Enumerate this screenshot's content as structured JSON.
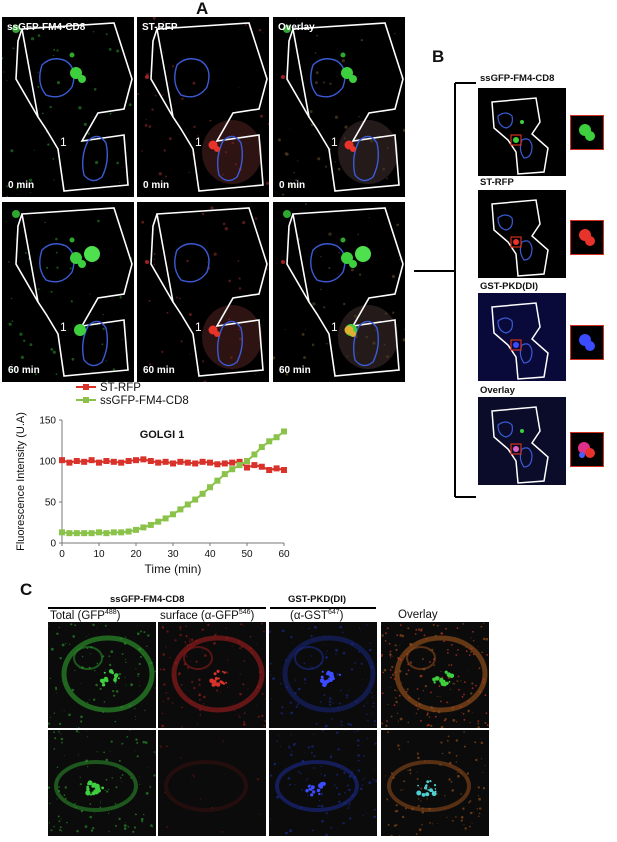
{
  "panel_a": {
    "letter": "A",
    "columns": [
      "ssGFP-FM4-CD8",
      "ST-RFP",
      "Overlay"
    ],
    "times": [
      "0 min",
      "60 min"
    ],
    "cell_marker": "1"
  },
  "panel_b": {
    "letter": "B",
    "rows": [
      "ssGFP-FM4-CD8",
      "ST-RFP",
      "GST-PKD(DI)",
      "Overlay"
    ]
  },
  "panel_c": {
    "letter": "C",
    "group1": "ssGFP-FM4-CD8",
    "group2": "GST-PKD(DI)",
    "col1_text": "Total (GFP",
    "col1_sup": "488",
    "col1_end": ")",
    "col2_text": "surface (α-GFP",
    "col2_sup": "546",
    "col2_end": ")",
    "col3_text": "(α-GST",
    "col3_sup": "647",
    "col3_end": ")",
    "col4": "Overlay"
  },
  "colors": {
    "st_rfp": "#d8322a",
    "ssgfp": "#8bc34a",
    "outline_white": "#ffffff",
    "outline_blue": "#3b5bd6",
    "zoom_box": "#d2301e"
  },
  "chart_data": {
    "type": "line",
    "title": "GOLGI 1",
    "xlabel": "Time (min)",
    "ylabel": "Fluorescence Intensity (U.A)",
    "xlim": [
      0,
      60
    ],
    "ylim": [
      0,
      150
    ],
    "xticks": [
      0,
      10,
      20,
      30,
      40,
      50,
      60
    ],
    "yticks": [
      0,
      50,
      100,
      150
    ],
    "legend": "top-left",
    "series": [
      {
        "name": "ST-RFP",
        "color": "#d8322a",
        "x": [
          0,
          2,
          4,
          6,
          8,
          10,
          12,
          14,
          16,
          18,
          20,
          22,
          24,
          26,
          28,
          30,
          32,
          34,
          36,
          38,
          40,
          42,
          44,
          46,
          48,
          50,
          52,
          54,
          56,
          58,
          60
        ],
        "y": [
          101,
          98,
          100,
          99,
          101,
          98,
          100,
          99,
          98,
          100,
          101,
          102,
          100,
          98,
          99,
          97,
          99,
          98,
          97,
          99,
          98,
          96,
          97,
          98,
          99,
          92,
          95,
          93,
          89,
          91,
          89
        ]
      },
      {
        "name": "ssGFP-FM4-CD8",
        "color": "#8bc34a",
        "x": [
          0,
          2,
          4,
          6,
          8,
          10,
          12,
          14,
          16,
          18,
          20,
          22,
          24,
          26,
          28,
          30,
          32,
          34,
          36,
          38,
          40,
          42,
          44,
          46,
          48,
          50,
          52,
          54,
          56,
          58,
          60
        ],
        "y": [
          13,
          12,
          12,
          12,
          12,
          13,
          12,
          13,
          13,
          14,
          16,
          19,
          22,
          26,
          30,
          35,
          41,
          47,
          53,
          60,
          68,
          76,
          84,
          90,
          95,
          100,
          108,
          117,
          124,
          129,
          136
        ]
      }
    ]
  }
}
